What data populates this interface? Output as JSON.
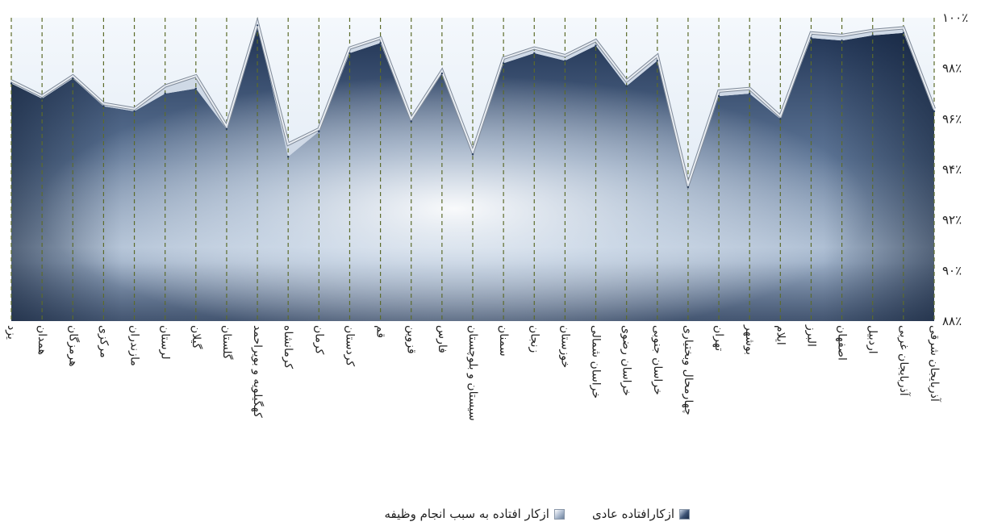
{
  "chart_data": {
    "type": "area",
    "categories": [
      "یزد",
      "همدان",
      "هرمزگان",
      "مرکزی",
      "مازندران",
      "لرستان",
      "گیلان",
      "گلستان",
      "کهگیلویه و بویراحمد",
      "کرمانشاه",
      "کرمان",
      "کردستان",
      "قم",
      "قزوین",
      "فارس",
      "سیستان و بلوچستان",
      "سمنان",
      "زنجان",
      "خوزستان",
      "خراسان شمالی",
      "خراسان رضوی",
      "خراسان جنوبی",
      "چهارمحال وبختیاری",
      "تهران",
      "بوشهر",
      "ایلام",
      "البرز",
      "اصفهان",
      "اردبیل",
      "آذربایجان غربی",
      "آذربایجان شرقی"
    ],
    "series": [
      {
        "name": "ازکار افتاده به سبب انجام وظیفه",
        "values": [
          97.5,
          96.9,
          97.7,
          96.6,
          96.4,
          97.3,
          97.7,
          95.7,
          99.8,
          95.0,
          95.6,
          98.8,
          99.2,
          96.0,
          97.9,
          94.7,
          98.4,
          98.8,
          98.5,
          99.1,
          97.5,
          98.5,
          93.4,
          97.1,
          97.2,
          96.1,
          99.4,
          99.3,
          99.5,
          99.6,
          96.4
        ]
      },
      {
        "name": "ازکارافتاده عادی",
        "values": [
          97.4,
          96.8,
          97.6,
          96.5,
          96.3,
          97.0,
          97.2,
          95.6,
          99.7,
          94.5,
          95.5,
          98.6,
          99.0,
          95.9,
          97.8,
          94.6,
          98.2,
          98.6,
          98.3,
          98.9,
          97.3,
          98.3,
          93.3,
          96.9,
          97.0,
          96.0,
          99.2,
          99.1,
          99.3,
          99.4,
          96.3
        ]
      }
    ],
    "ylim": [
      88,
      100
    ],
    "yticks": [
      "۸۸٪",
      "۹۰٪",
      "۹۲٪",
      "۹۴٪",
      "۹۶٪",
      "۹۸٪",
      "۱۰۰٪"
    ],
    "grid": "vertical dashed",
    "legend_position": "bottom",
    "colors": {
      "duty": "#b7c4d6",
      "normal": "#2a3f5f",
      "outline": "#9aa6b6",
      "grid": "#5c6b2a"
    }
  },
  "legend": {
    "duty_label": "ازکار افتاده به سبب انجام وظیفه",
    "normal_label": "ازکارافتاده عادی"
  }
}
